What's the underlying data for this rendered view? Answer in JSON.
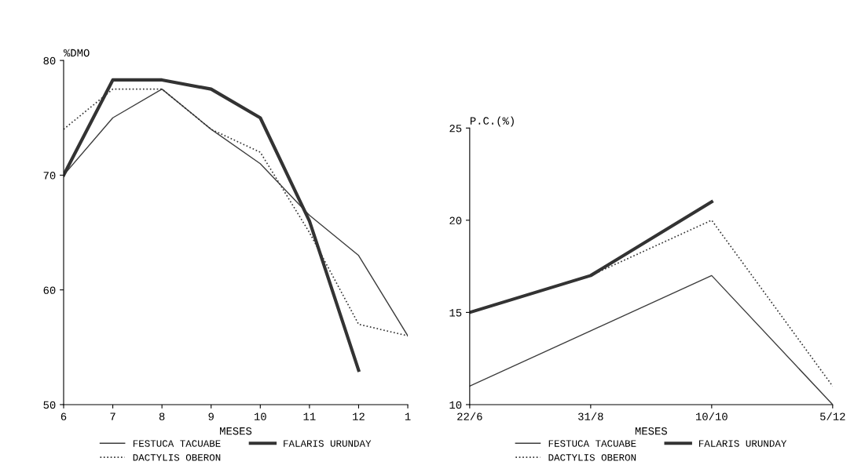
{
  "chart_data": [
    {
      "type": "line",
      "ylabel": "%DMO",
      "xlabel": "MESES",
      "categories": [
        "6",
        "7",
        "8",
        "9",
        "10",
        "11",
        "12",
        "1"
      ],
      "ylim": [
        50,
        80
      ],
      "yticks": [
        50,
        60,
        70,
        80
      ],
      "grid": false,
      "legend": "bottom",
      "marker": "none",
      "series": [
        {
          "name": "FESTUCA TACUABE",
          "color": "#3c3c3c",
          "line_style": "solid",
          "values": [
            70,
            75,
            77.5,
            74,
            71,
            66.5,
            63,
            56
          ]
        },
        {
          "name": "DACTYLIS OBERON",
          "color": "#333333",
          "line_style": "dotted",
          "values": [
            74,
            77.5,
            77.5,
            74,
            72,
            65,
            57,
            56
          ]
        },
        {
          "name": "FALARIS URUNDAY",
          "color": "#333333",
          "line_style": "solid",
          "values": [
            70,
            78.3,
            78.3,
            77.5,
            75,
            66,
            53,
            null
          ]
        }
      ]
    },
    {
      "type": "line",
      "ylabel": "P.C.(%)",
      "xlabel": "MESES",
      "categories": [
        "22/6",
        "31/8",
        "10/10",
        "5/12"
      ],
      "ylim": [
        10,
        25
      ],
      "yticks": [
        10,
        15,
        20,
        25
      ],
      "grid": false,
      "legend": "bottom",
      "marker": "none",
      "series": [
        {
          "name": "FESTUCA TACUABE",
          "color": "#3c3c3c",
          "line_style": "solid",
          "values": [
            11,
            14,
            17,
            10
          ]
        },
        {
          "name": "DACTYLIS OBERON",
          "color": "#333333",
          "line_style": "dotted",
          "values": [
            15,
            17,
            20,
            11
          ]
        },
        {
          "name": "FALARIS URUNDAY",
          "color": "#333333",
          "line_style": "solid",
          "values": [
            15,
            17,
            21,
            null
          ]
        }
      ]
    }
  ]
}
